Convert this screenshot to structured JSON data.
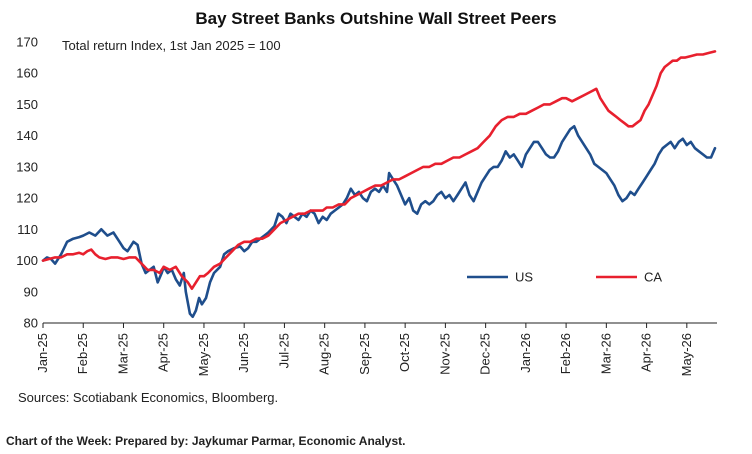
{
  "chart_data": {
    "type": "line",
    "title": "Bay Street Banks Outshine Wall Street Peers",
    "subtitle": "Total return Index, 1st Jan 2025 = 100",
    "ylim": [
      80,
      170
    ],
    "y_ticks": [
      80,
      90,
      100,
      110,
      120,
      130,
      140,
      150,
      160,
      170
    ],
    "x_ticks": [
      "Jan-25",
      "Feb-25",
      "Mar-25",
      "Apr-25",
      "May-25",
      "Jun-25",
      "Jul-25",
      "Aug-25",
      "Sep-25",
      "Oct-25",
      "Nov-25",
      "Dec-25",
      "Jan-26",
      "Feb-26",
      "Mar-26",
      "Apr-26",
      "May-26"
    ],
    "x_range_months": [
      0,
      16.75
    ],
    "grid": false,
    "legend_position": "center-right",
    "series": [
      {
        "name": "US",
        "color": "#1f4e8c",
        "points": [
          [
            0.0,
            100
          ],
          [
            0.1,
            101
          ],
          [
            0.2,
            100.5
          ],
          [
            0.3,
            99
          ],
          [
            0.45,
            102
          ],
          [
            0.6,
            106
          ],
          [
            0.75,
            107
          ],
          [
            0.9,
            107.5
          ],
          [
            1.0,
            108
          ],
          [
            1.15,
            109
          ],
          [
            1.3,
            108
          ],
          [
            1.45,
            110
          ],
          [
            1.6,
            108
          ],
          [
            1.75,
            109
          ],
          [
            1.9,
            106
          ],
          [
            2.0,
            104
          ],
          [
            2.1,
            103
          ],
          [
            2.25,
            106
          ],
          [
            2.35,
            105
          ],
          [
            2.45,
            99
          ],
          [
            2.55,
            96
          ],
          [
            2.65,
            97
          ],
          [
            2.75,
            98
          ],
          [
            2.85,
            93
          ],
          [
            2.95,
            96
          ],
          [
            3.0,
            98
          ],
          [
            3.1,
            96
          ],
          [
            3.2,
            97
          ],
          [
            3.3,
            94
          ],
          [
            3.4,
            92
          ],
          [
            3.5,
            96
          ],
          [
            3.55,
            90
          ],
          [
            3.65,
            83
          ],
          [
            3.72,
            82
          ],
          [
            3.8,
            84
          ],
          [
            3.88,
            88
          ],
          [
            3.95,
            86
          ],
          [
            4.05,
            88
          ],
          [
            4.15,
            93
          ],
          [
            4.25,
            96
          ],
          [
            4.4,
            98
          ],
          [
            4.5,
            102
          ],
          [
            4.6,
            103
          ],
          [
            4.75,
            104
          ],
          [
            4.9,
            104.5
          ],
          [
            5.0,
            103
          ],
          [
            5.1,
            104
          ],
          [
            5.2,
            106
          ],
          [
            5.3,
            106
          ],
          [
            5.4,
            107
          ],
          [
            5.5,
            108
          ],
          [
            5.6,
            109
          ],
          [
            5.75,
            111
          ],
          [
            5.85,
            115
          ],
          [
            5.95,
            114
          ],
          [
            6.05,
            112
          ],
          [
            6.15,
            115
          ],
          [
            6.25,
            114
          ],
          [
            6.35,
            113
          ],
          [
            6.45,
            115
          ],
          [
            6.55,
            114
          ],
          [
            6.65,
            116
          ],
          [
            6.75,
            115
          ],
          [
            6.85,
            112
          ],
          [
            6.95,
            114
          ],
          [
            7.05,
            113
          ],
          [
            7.15,
            115
          ],
          [
            7.25,
            116
          ],
          [
            7.35,
            117
          ],
          [
            7.45,
            118
          ],
          [
            7.55,
            120
          ],
          [
            7.65,
            123
          ],
          [
            7.75,
            121
          ],
          [
            7.85,
            122
          ],
          [
            7.95,
            120
          ],
          [
            8.05,
            119
          ],
          [
            8.15,
            122
          ],
          [
            8.25,
            123
          ],
          [
            8.35,
            122
          ],
          [
            8.45,
            124
          ],
          [
            8.55,
            122
          ],
          [
            8.6,
            128
          ],
          [
            8.7,
            126
          ],
          [
            8.8,
            124
          ],
          [
            8.9,
            121
          ],
          [
            9.0,
            118
          ],
          [
            9.1,
            120
          ],
          [
            9.2,
            116
          ],
          [
            9.3,
            115
          ],
          [
            9.4,
            118
          ],
          [
            9.5,
            119
          ],
          [
            9.6,
            118
          ],
          [
            9.7,
            119
          ],
          [
            9.8,
            121
          ],
          [
            9.9,
            122
          ],
          [
            10.0,
            120
          ],
          [
            10.1,
            121
          ],
          [
            10.2,
            119
          ],
          [
            10.3,
            121
          ],
          [
            10.4,
            123
          ],
          [
            10.5,
            125
          ],
          [
            10.6,
            121
          ],
          [
            10.7,
            119
          ],
          [
            10.8,
            122
          ],
          [
            10.9,
            125
          ],
          [
            11.0,
            127
          ],
          [
            11.1,
            129
          ],
          [
            11.2,
            130
          ],
          [
            11.3,
            130
          ],
          [
            11.4,
            132
          ],
          [
            11.5,
            135
          ],
          [
            11.6,
            133
          ],
          [
            11.7,
            134
          ],
          [
            11.8,
            132
          ],
          [
            11.9,
            130
          ],
          [
            12.0,
            134
          ],
          [
            12.1,
            136
          ],
          [
            12.2,
            138
          ],
          [
            12.3,
            138
          ],
          [
            12.4,
            136
          ],
          [
            12.5,
            134
          ],
          [
            12.6,
            133
          ],
          [
            12.7,
            133
          ],
          [
            12.8,
            135
          ],
          [
            12.9,
            138
          ],
          [
            13.0,
            140
          ],
          [
            13.1,
            142
          ],
          [
            13.2,
            143
          ],
          [
            13.3,
            140
          ],
          [
            13.4,
            138
          ],
          [
            13.5,
            136
          ],
          [
            13.6,
            134
          ],
          [
            13.7,
            131
          ],
          [
            13.8,
            130
          ],
          [
            13.9,
            129
          ],
          [
            14.0,
            128
          ],
          [
            14.1,
            126
          ],
          [
            14.2,
            124
          ],
          [
            14.3,
            121
          ],
          [
            14.4,
            119
          ],
          [
            14.5,
            120
          ],
          [
            14.6,
            122
          ],
          [
            14.7,
            121
          ],
          [
            14.8,
            123
          ],
          [
            14.9,
            125
          ],
          [
            15.0,
            127
          ],
          [
            15.1,
            129
          ],
          [
            15.2,
            131
          ],
          [
            15.3,
            134
          ],
          [
            15.4,
            136
          ],
          [
            15.5,
            137
          ],
          [
            15.6,
            138
          ],
          [
            15.7,
            136
          ],
          [
            15.8,
            138
          ],
          [
            15.9,
            139
          ],
          [
            16.0,
            137
          ],
          [
            16.1,
            138
          ],
          [
            16.2,
            136
          ],
          [
            16.3,
            135
          ],
          [
            16.4,
            134
          ],
          [
            16.5,
            133
          ],
          [
            16.6,
            133
          ],
          [
            16.7,
            136
          ]
        ]
      },
      {
        "name": "CA",
        "color": "#e8202e",
        "points": [
          [
            0.0,
            100
          ],
          [
            0.15,
            100.5
          ],
          [
            0.3,
            101
          ],
          [
            0.45,
            101
          ],
          [
            0.6,
            102
          ],
          [
            0.75,
            102
          ],
          [
            0.9,
            102.5
          ],
          [
            1.0,
            102
          ],
          [
            1.1,
            103
          ],
          [
            1.2,
            103.5
          ],
          [
            1.3,
            102
          ],
          [
            1.4,
            101
          ],
          [
            1.55,
            100.5
          ],
          [
            1.7,
            101
          ],
          [
            1.85,
            101
          ],
          [
            2.0,
            100.5
          ],
          [
            2.15,
            101
          ],
          [
            2.3,
            101
          ],
          [
            2.45,
            99
          ],
          [
            2.6,
            97
          ],
          [
            2.75,
            97
          ],
          [
            2.9,
            96
          ],
          [
            3.0,
            98
          ],
          [
            3.15,
            97
          ],
          [
            3.3,
            98
          ],
          [
            3.45,
            95
          ],
          [
            3.6,
            93
          ],
          [
            3.7,
            91
          ],
          [
            3.8,
            93
          ],
          [
            3.9,
            95
          ],
          [
            4.0,
            95
          ],
          [
            4.1,
            96
          ],
          [
            4.25,
            98
          ],
          [
            4.4,
            99
          ],
          [
            4.55,
            101
          ],
          [
            4.7,
            103
          ],
          [
            4.85,
            105
          ],
          [
            5.0,
            106
          ],
          [
            5.15,
            106
          ],
          [
            5.3,
            107
          ],
          [
            5.45,
            107
          ],
          [
            5.6,
            108
          ],
          [
            5.75,
            110
          ],
          [
            5.9,
            112
          ],
          [
            6.05,
            113
          ],
          [
            6.2,
            114
          ],
          [
            6.35,
            115
          ],
          [
            6.5,
            115
          ],
          [
            6.65,
            116
          ],
          [
            6.8,
            116
          ],
          [
            6.95,
            116
          ],
          [
            7.05,
            117
          ],
          [
            7.2,
            117
          ],
          [
            7.35,
            118
          ],
          [
            7.5,
            118
          ],
          [
            7.65,
            120
          ],
          [
            7.8,
            121
          ],
          [
            7.95,
            122
          ],
          [
            8.1,
            123
          ],
          [
            8.25,
            124
          ],
          [
            8.4,
            124
          ],
          [
            8.55,
            125
          ],
          [
            8.7,
            126
          ],
          [
            8.85,
            126
          ],
          [
            9.0,
            127
          ],
          [
            9.15,
            128
          ],
          [
            9.3,
            129
          ],
          [
            9.45,
            130
          ],
          [
            9.6,
            130
          ],
          [
            9.75,
            131
          ],
          [
            9.9,
            131
          ],
          [
            10.05,
            132
          ],
          [
            10.2,
            133
          ],
          [
            10.35,
            133
          ],
          [
            10.5,
            134
          ],
          [
            10.65,
            135
          ],
          [
            10.8,
            136
          ],
          [
            10.95,
            138
          ],
          [
            11.1,
            140
          ],
          [
            11.25,
            143
          ],
          [
            11.4,
            145
          ],
          [
            11.55,
            146
          ],
          [
            11.7,
            146
          ],
          [
            11.85,
            147
          ],
          [
            12.0,
            147
          ],
          [
            12.15,
            148
          ],
          [
            12.3,
            149
          ],
          [
            12.45,
            150
          ],
          [
            12.6,
            150
          ],
          [
            12.75,
            151
          ],
          [
            12.9,
            152
          ],
          [
            13.0,
            152
          ],
          [
            13.15,
            151
          ],
          [
            13.3,
            152
          ],
          [
            13.45,
            153
          ],
          [
            13.6,
            154
          ],
          [
            13.75,
            155
          ],
          [
            13.85,
            152
          ],
          [
            13.95,
            150
          ],
          [
            14.05,
            148
          ],
          [
            14.15,
            147
          ],
          [
            14.25,
            146
          ],
          [
            14.35,
            145
          ],
          [
            14.45,
            144
          ],
          [
            14.55,
            143
          ],
          [
            14.65,
            143
          ],
          [
            14.75,
            144
          ],
          [
            14.85,
            145
          ],
          [
            14.95,
            148
          ],
          [
            15.05,
            150
          ],
          [
            15.15,
            153
          ],
          [
            15.25,
            156
          ],
          [
            15.35,
            160
          ],
          [
            15.45,
            162
          ],
          [
            15.55,
            163
          ],
          [
            15.65,
            164
          ],
          [
            15.75,
            164
          ],
          [
            15.85,
            165
          ],
          [
            15.95,
            165
          ],
          [
            16.1,
            165.5
          ],
          [
            16.25,
            166
          ],
          [
            16.4,
            166
          ],
          [
            16.55,
            166.5
          ],
          [
            16.7,
            167
          ]
        ]
      }
    ],
    "sources": "Sources: Scotiabank Economics, Bloomberg."
  },
  "footer": "Chart of the Week: Prepared by: Jaykumar Parmar, Economic Analyst."
}
